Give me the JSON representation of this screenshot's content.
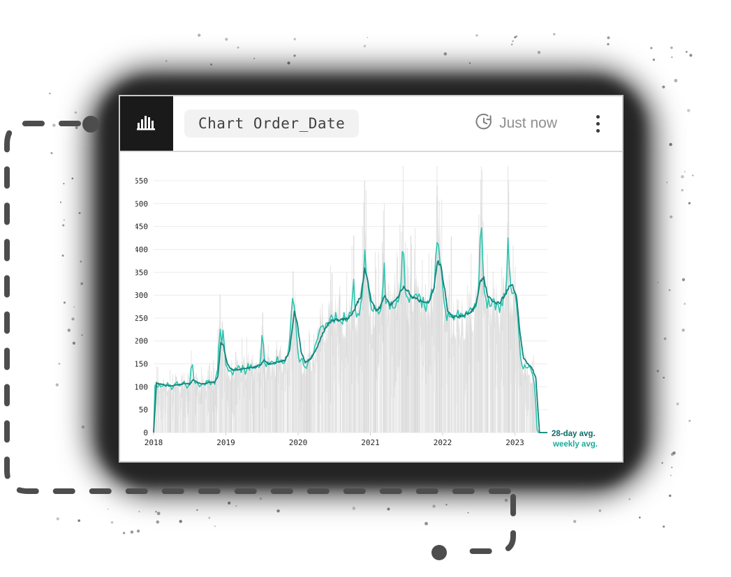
{
  "header": {
    "logo_icon": "bar-chart-icon",
    "title": "Chart Order_Date",
    "refresh_icon": "history-clock-icon",
    "refresh_label": "Just now",
    "menu_icon": "kebab-menu-icon"
  },
  "colors": {
    "card_border": "#c9c9c9",
    "logo_background": "#1a1a1a",
    "title_pill_background": "#f2f2f2",
    "refresh_text": "#8f8f8f",
    "grid_line": "#ececec",
    "axis_text": "#222222",
    "daily_area": "#e3e3e3",
    "daily_spike": "#dedede",
    "weekly_line": "#2cc5ae",
    "avg28_line": "#15837b"
  },
  "chart_data": {
    "type": "area",
    "title": "",
    "xlabel": "",
    "ylabel": "",
    "x_tick_labels": [
      "2018",
      "2019",
      "2020",
      "2021",
      "2022",
      "2023"
    ],
    "x_ticks": [
      2018,
      2019,
      2020,
      2021,
      2022,
      2023
    ],
    "y_ticks": [
      0,
      50,
      100,
      150,
      200,
      250,
      300,
      350,
      400,
      450,
      500,
      550
    ],
    "ylim": [
      0,
      550
    ],
    "xlim": [
      2018.0,
      2023.45
    ],
    "grid": "horizontal",
    "legend_position": "right-end-of-lines",
    "legend": [
      {
        "label": "28-day avg.",
        "color": "#0b6c67"
      },
      {
        "label": "weekly avg.",
        "color": "#18ab9b"
      }
    ],
    "series": [
      {
        "name": "daily",
        "type": "area",
        "color": "#e3e3e3",
        "render": "weekly-base-with-noise"
      },
      {
        "name": "weekly avg.",
        "type": "line",
        "color": "#2cc5ae",
        "points": [
          [
            2018.0,
            0
          ],
          [
            2018.02,
            112
          ],
          [
            2018.05,
            100
          ],
          [
            2018.08,
            110
          ],
          [
            2018.11,
            97
          ],
          [
            2018.14,
            106
          ],
          [
            2018.17,
            99
          ],
          [
            2018.2,
            108
          ],
          [
            2018.23,
            101
          ],
          [
            2018.26,
            95
          ],
          [
            2018.29,
            104
          ],
          [
            2018.32,
            110
          ],
          [
            2018.35,
            100
          ],
          [
            2018.38,
            107
          ],
          [
            2018.41,
            112
          ],
          [
            2018.44,
            103
          ],
          [
            2018.47,
            98
          ],
          [
            2018.5,
            108
          ],
          [
            2018.53,
            165
          ],
          [
            2018.55,
            120
          ],
          [
            2018.58,
            104
          ],
          [
            2018.61,
            112
          ],
          [
            2018.64,
            99
          ],
          [
            2018.67,
            108
          ],
          [
            2018.7,
            102
          ],
          [
            2018.73,
            110
          ],
          [
            2018.76,
            116
          ],
          [
            2018.79,
            103
          ],
          [
            2018.82,
            112
          ],
          [
            2018.85,
            108
          ],
          [
            2018.88,
            132
          ],
          [
            2018.92,
            228
          ],
          [
            2018.94,
            198
          ],
          [
            2018.96,
            222
          ],
          [
            2019.0,
            152
          ],
          [
            2019.03,
            130
          ],
          [
            2019.06,
            142
          ],
          [
            2019.09,
            128
          ],
          [
            2019.12,
            140
          ],
          [
            2019.15,
            132
          ],
          [
            2019.18,
            144
          ],
          [
            2019.21,
            135
          ],
          [
            2019.24,
            147
          ],
          [
            2019.27,
            132
          ],
          [
            2019.3,
            150
          ],
          [
            2019.33,
            138
          ],
          [
            2019.36,
            148
          ],
          [
            2019.39,
            136
          ],
          [
            2019.42,
            150
          ],
          [
            2019.45,
            140
          ],
          [
            2019.48,
            152
          ],
          [
            2019.51,
            235
          ],
          [
            2019.53,
            155
          ],
          [
            2019.56,
            144
          ],
          [
            2019.59,
            156
          ],
          [
            2019.62,
            146
          ],
          [
            2019.65,
            158
          ],
          [
            2019.68,
            148
          ],
          [
            2019.71,
            160
          ],
          [
            2019.74,
            150
          ],
          [
            2019.77,
            163
          ],
          [
            2019.8,
            152
          ],
          [
            2019.83,
            166
          ],
          [
            2019.86,
            172
          ],
          [
            2019.9,
            242
          ],
          [
            2019.93,
            297
          ],
          [
            2019.96,
            262
          ],
          [
            2020.0,
            172
          ],
          [
            2020.03,
            152
          ],
          [
            2020.06,
            158
          ],
          [
            2020.1,
            142
          ],
          [
            2020.14,
            150
          ],
          [
            2020.18,
            162
          ],
          [
            2020.22,
            178
          ],
          [
            2020.26,
            198
          ],
          [
            2020.3,
            218
          ],
          [
            2020.34,
            238
          ],
          [
            2020.37,
            228
          ],
          [
            2020.4,
            246
          ],
          [
            2020.43,
            236
          ],
          [
            2020.46,
            252
          ],
          [
            2020.49,
            240
          ],
          [
            2020.52,
            256
          ],
          [
            2020.55,
            242
          ],
          [
            2020.58,
            254
          ],
          [
            2020.61,
            244
          ],
          [
            2020.64,
            256
          ],
          [
            2020.67,
            246
          ],
          [
            2020.7,
            258
          ],
          [
            2020.73,
            248
          ],
          [
            2020.77,
            343
          ],
          [
            2020.79,
            262
          ],
          [
            2020.82,
            252
          ],
          [
            2020.85,
            266
          ],
          [
            2020.88,
            274
          ],
          [
            2020.92,
            400
          ],
          [
            2020.94,
            362
          ],
          [
            2020.96,
            322
          ],
          [
            2021.0,
            282
          ],
          [
            2021.03,
            258
          ],
          [
            2021.06,
            270
          ],
          [
            2021.09,
            254
          ],
          [
            2021.12,
            268
          ],
          [
            2021.15,
            256
          ],
          [
            2021.19,
            375
          ],
          [
            2021.21,
            292
          ],
          [
            2021.24,
            278
          ],
          [
            2021.27,
            268
          ],
          [
            2021.3,
            282
          ],
          [
            2021.33,
            272
          ],
          [
            2021.36,
            288
          ],
          [
            2021.39,
            298
          ],
          [
            2021.42,
            312
          ],
          [
            2021.45,
            435
          ],
          [
            2021.47,
            332
          ],
          [
            2021.5,
            302
          ],
          [
            2021.53,
            290
          ],
          [
            2021.56,
            302
          ],
          [
            2021.59,
            286
          ],
          [
            2021.62,
            298
          ],
          [
            2021.65,
            284
          ],
          [
            2021.68,
            296
          ],
          [
            2021.71,
            276
          ],
          [
            2021.74,
            288
          ],
          [
            2021.77,
            272
          ],
          [
            2021.8,
            284
          ],
          [
            2021.83,
            298
          ],
          [
            2021.86,
            312
          ],
          [
            2021.89,
            330
          ],
          [
            2021.92,
            437
          ],
          [
            2021.95,
            382
          ],
          [
            2021.97,
            390
          ],
          [
            2022.0,
            312
          ],
          [
            2022.03,
            262
          ],
          [
            2022.06,
            248
          ],
          [
            2022.09,
            258
          ],
          [
            2022.12,
            242
          ],
          [
            2022.15,
            256
          ],
          [
            2022.18,
            248
          ],
          [
            2022.21,
            262
          ],
          [
            2022.24,
            252
          ],
          [
            2022.27,
            264
          ],
          [
            2022.3,
            254
          ],
          [
            2022.33,
            268
          ],
          [
            2022.36,
            258
          ],
          [
            2022.39,
            270
          ],
          [
            2022.42,
            262
          ],
          [
            2022.45,
            276
          ],
          [
            2022.48,
            288
          ],
          [
            2022.51,
            352
          ],
          [
            2022.53,
            510
          ],
          [
            2022.55,
            388
          ],
          [
            2022.58,
            298
          ],
          [
            2022.61,
            280
          ],
          [
            2022.64,
            292
          ],
          [
            2022.67,
            276
          ],
          [
            2022.7,
            288
          ],
          [
            2022.73,
            274
          ],
          [
            2022.76,
            286
          ],
          [
            2022.79,
            272
          ],
          [
            2022.82,
            284
          ],
          [
            2022.85,
            296
          ],
          [
            2022.88,
            312
          ],
          [
            2022.9,
            438
          ],
          [
            2022.93,
            322
          ],
          [
            2022.96,
            312
          ],
          [
            2023.0,
            308
          ],
          [
            2023.04,
            242
          ],
          [
            2023.08,
            156
          ],
          [
            2023.11,
            142
          ],
          [
            2023.14,
            150
          ],
          [
            2023.17,
            138
          ],
          [
            2023.2,
            146
          ],
          [
            2023.23,
            132
          ],
          [
            2023.26,
            126
          ],
          [
            2023.29,
            58
          ],
          [
            2023.31,
            0
          ],
          [
            2023.45,
            0
          ]
        ]
      },
      {
        "name": "28-day avg.",
        "type": "line",
        "color": "#15837b",
        "points": [
          [
            2018.0,
            0
          ],
          [
            2018.04,
            108
          ],
          [
            2018.1,
            106
          ],
          [
            2018.18,
            103
          ],
          [
            2018.26,
            102
          ],
          [
            2018.34,
            105
          ],
          [
            2018.42,
            107
          ],
          [
            2018.5,
            106
          ],
          [
            2018.55,
            116
          ],
          [
            2018.6,
            110
          ],
          [
            2018.68,
            106
          ],
          [
            2018.76,
            109
          ],
          [
            2018.84,
            110
          ],
          [
            2018.89,
            122
          ],
          [
            2018.93,
            196
          ],
          [
            2018.97,
            188
          ],
          [
            2019.02,
            150
          ],
          [
            2019.08,
            137
          ],
          [
            2019.16,
            138
          ],
          [
            2019.24,
            139
          ],
          [
            2019.32,
            141
          ],
          [
            2019.4,
            143
          ],
          [
            2019.48,
            148
          ],
          [
            2019.53,
            158
          ],
          [
            2019.58,
            150
          ],
          [
            2019.66,
            152
          ],
          [
            2019.74,
            154
          ],
          [
            2019.82,
            158
          ],
          [
            2019.88,
            178
          ],
          [
            2019.95,
            264
          ],
          [
            2019.99,
            238
          ],
          [
            2020.04,
            176
          ],
          [
            2020.1,
            153
          ],
          [
            2020.18,
            162
          ],
          [
            2020.26,
            186
          ],
          [
            2020.34,
            216
          ],
          [
            2020.42,
            240
          ],
          [
            2020.5,
            246
          ],
          [
            2020.58,
            246
          ],
          [
            2020.66,
            248
          ],
          [
            2020.74,
            255
          ],
          [
            2020.8,
            278
          ],
          [
            2020.87,
            298
          ],
          [
            2020.92,
            356
          ],
          [
            2020.96,
            336
          ],
          [
            2021.01,
            290
          ],
          [
            2021.08,
            264
          ],
          [
            2021.15,
            278
          ],
          [
            2021.2,
            300
          ],
          [
            2021.27,
            280
          ],
          [
            2021.34,
            286
          ],
          [
            2021.41,
            305
          ],
          [
            2021.46,
            318
          ],
          [
            2021.52,
            308
          ],
          [
            2021.58,
            294
          ],
          [
            2021.66,
            290
          ],
          [
            2021.74,
            284
          ],
          [
            2021.82,
            286
          ],
          [
            2021.88,
            318
          ],
          [
            2021.93,
            372
          ],
          [
            2021.97,
            368
          ],
          [
            2022.02,
            322
          ],
          [
            2022.07,
            268
          ],
          [
            2022.14,
            252
          ],
          [
            2022.22,
            254
          ],
          [
            2022.3,
            257
          ],
          [
            2022.38,
            262
          ],
          [
            2022.46,
            278
          ],
          [
            2022.52,
            330
          ],
          [
            2022.57,
            338
          ],
          [
            2022.62,
            300
          ],
          [
            2022.7,
            285
          ],
          [
            2022.78,
            282
          ],
          [
            2022.86,
            300
          ],
          [
            2022.92,
            318
          ],
          [
            2022.97,
            320
          ],
          [
            2023.02,
            300
          ],
          [
            2023.07,
            220
          ],
          [
            2023.12,
            162
          ],
          [
            2023.18,
            150
          ],
          [
            2023.24,
            140
          ],
          [
            2023.29,
            118
          ],
          [
            2023.34,
            0
          ],
          [
            2023.45,
            0
          ]
        ]
      }
    ],
    "daily_spikes": [
      [
        2018.92,
        302
      ],
      [
        2019.51,
        262
      ],
      [
        2019.93,
        352
      ],
      [
        2020.47,
        348
      ],
      [
        2020.77,
        430
      ],
      [
        2020.92,
        550
      ],
      [
        2021.19,
        452
      ],
      [
        2021.45,
        498
      ],
      [
        2021.56,
        430
      ],
      [
        2021.92,
        518
      ],
      [
        2022.12,
        428
      ],
      [
        2022.53,
        552
      ],
      [
        2022.9,
        458
      ],
      [
        2023.07,
        188
      ]
    ],
    "noise": {
      "seed": 11,
      "daily_amplitude": 0.22,
      "weekly_jitter": 0.04,
      "avg28_jitter": 0.012
    }
  }
}
